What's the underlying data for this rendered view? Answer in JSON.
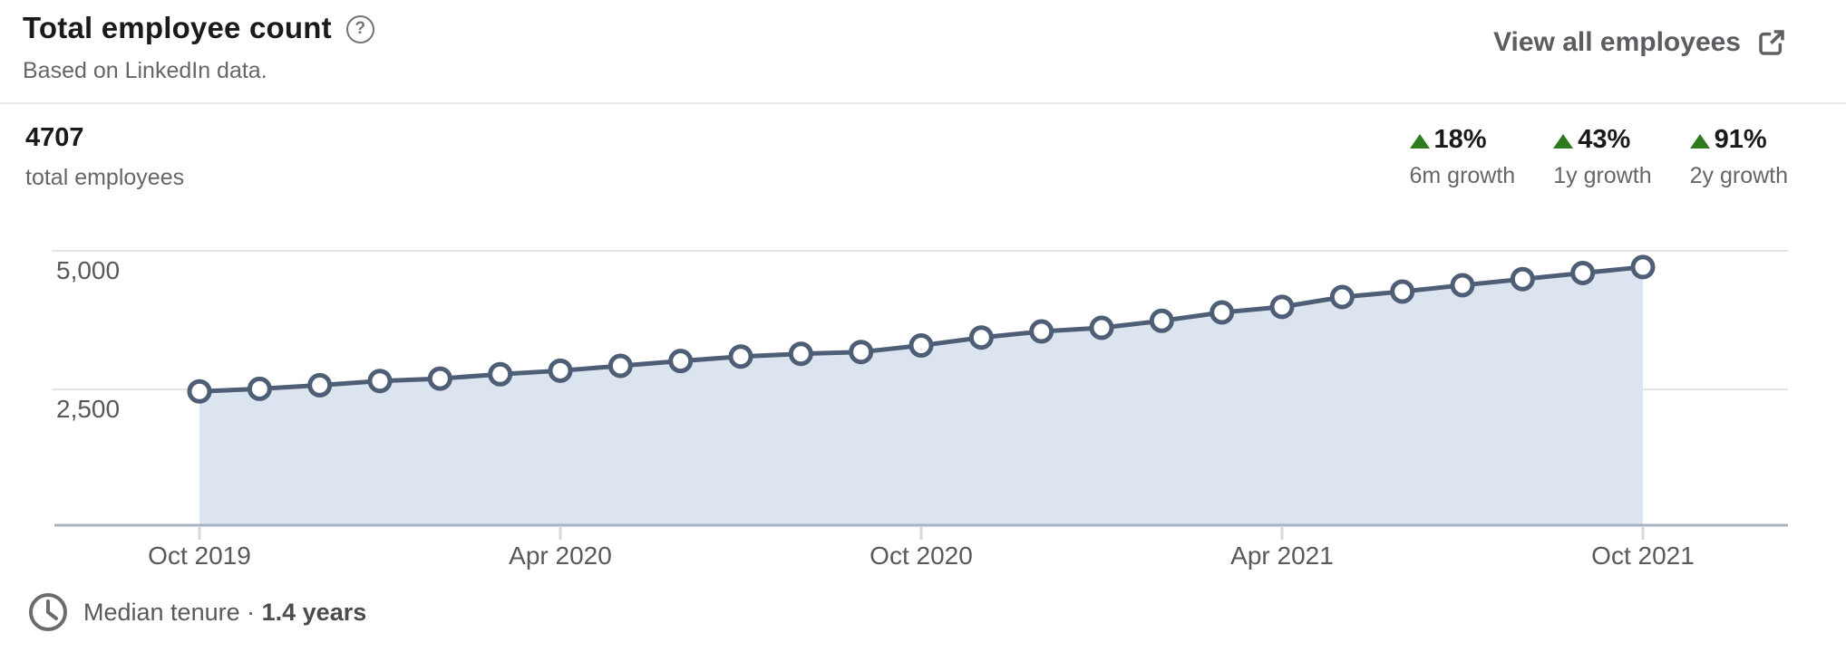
{
  "header": {
    "title": "Total employee count",
    "help_icon": "?",
    "subtitle": "Based on LinkedIn data.",
    "view_all_label": "View all employees"
  },
  "summary": {
    "total_value": "4707",
    "total_label": "total employees",
    "growth": [
      {
        "pct": "18%",
        "label": "6m growth",
        "direction": "up"
      },
      {
        "pct": "43%",
        "label": "1y growth",
        "direction": "up"
      },
      {
        "pct": "91%",
        "label": "2y growth",
        "direction": "up"
      }
    ]
  },
  "colors": {
    "positive_green": "#2e7b1e",
    "line": "#4e5e76",
    "area_fill": "#dce4f0",
    "gridline": "#e4e4e4",
    "axis_line": "#a9b3c2",
    "tick": "#d9d9d9"
  },
  "chart_data": {
    "type": "area",
    "title": "Total employee count",
    "x": [
      "Oct 2019",
      "Nov 2019",
      "Dec 2019",
      "Jan 2020",
      "Feb 2020",
      "Mar 2020",
      "Apr 2020",
      "May 2020",
      "Jun 2020",
      "Jul 2020",
      "Aug 2020",
      "Sep 2020",
      "Oct 2020",
      "Nov 2020",
      "Dec 2020",
      "Jan 2021",
      "Feb 2021",
      "Mar 2021",
      "Apr 2021",
      "May 2021",
      "Jun 2021",
      "Jul 2021",
      "Aug 2021",
      "Sep 2021",
      "Oct 2021"
    ],
    "values": [
      2464,
      2510,
      2575,
      2652,
      2695,
      2773,
      2838,
      2925,
      3012,
      3093,
      3142,
      3175,
      3292,
      3436,
      3546,
      3611,
      3737,
      3889,
      3989,
      4167,
      4265,
      4380,
      4490,
      4600,
      4707
    ],
    "x_tick_indices": [
      0,
      6,
      12,
      18,
      24
    ],
    "x_tick_labels": [
      "Oct 2019",
      "Apr 2020",
      "Oct 2020",
      "Apr 2021",
      "Oct 2021"
    ],
    "y_ticks": [
      2500,
      5000
    ],
    "y_tick_labels": [
      "2,500",
      "5,000"
    ],
    "ylim": [
      0,
      5400
    ],
    "grid": true,
    "legend": false,
    "marker": "open-circle"
  },
  "footer": {
    "label": "Median tenure ·",
    "value": "1.4 years"
  }
}
